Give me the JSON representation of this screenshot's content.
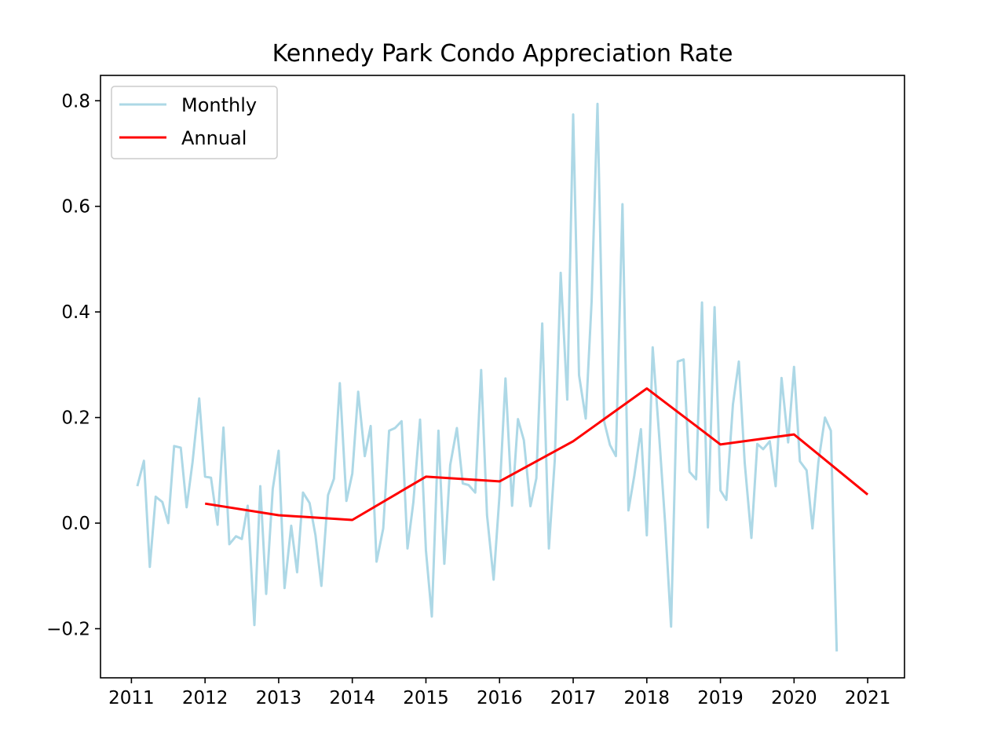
{
  "chart_data": {
    "type": "line",
    "title": "Kennedy Park Condo Appreciation Rate",
    "xlabel": "",
    "ylabel": "",
    "xlim": [
      2010.58,
      2021.5
    ],
    "ylim": [
      -0.293,
      0.848
    ],
    "x_ticks": [
      2011,
      2012,
      2013,
      2014,
      2015,
      2016,
      2017,
      2018,
      2019,
      2020,
      2021
    ],
    "x_tick_labels": [
      "2011",
      "2012",
      "2013",
      "2014",
      "2015",
      "2016",
      "2017",
      "2018",
      "2019",
      "2020",
      "2021"
    ],
    "y_ticks": [
      -0.2,
      0.0,
      0.2,
      0.4,
      0.6,
      0.8
    ],
    "y_tick_labels": [
      "−0.2",
      "0.0",
      "0.2",
      "0.4",
      "0.6",
      "0.8"
    ],
    "legend": {
      "placement": "top-left"
    },
    "grid": false,
    "series": [
      {
        "name": "Monthly",
        "color": "#add8e6",
        "x": [
          2011.08,
          2011.17,
          2011.25,
          2011.33,
          2011.42,
          2011.5,
          2011.58,
          2011.67,
          2011.75,
          2011.83,
          2011.92,
          2012.0,
          2012.08,
          2012.17,
          2012.25,
          2012.33,
          2012.42,
          2012.5,
          2012.58,
          2012.67,
          2012.75,
          2012.83,
          2012.92,
          2013.0,
          2013.08,
          2013.17,
          2013.25,
          2013.33,
          2013.42,
          2013.5,
          2013.58,
          2013.67,
          2013.75,
          2013.83,
          2013.92,
          2014.0,
          2014.08,
          2014.17,
          2014.25,
          2014.33,
          2014.42,
          2014.5,
          2014.58,
          2014.67,
          2014.75,
          2014.83,
          2014.92,
          2015.0,
          2015.08,
          2015.17,
          2015.25,
          2015.33,
          2015.42,
          2015.5,
          2015.58,
          2015.67,
          2015.75,
          2015.83,
          2015.92,
          2016.0,
          2016.08,
          2016.17,
          2016.25,
          2016.33,
          2016.42,
          2016.5,
          2016.58,
          2016.67,
          2016.75,
          2016.83,
          2016.92,
          2017.0,
          2017.08,
          2017.17,
          2017.25,
          2017.33,
          2017.42,
          2017.5,
          2017.58,
          2017.67,
          2017.75,
          2017.83,
          2017.92,
          2018.0,
          2018.08,
          2018.17,
          2018.25,
          2018.33,
          2018.42,
          2018.5,
          2018.58,
          2018.67,
          2018.75,
          2018.83,
          2018.92,
          2019.0,
          2019.08,
          2019.17,
          2019.25,
          2019.33,
          2019.42,
          2019.5,
          2019.58,
          2019.67,
          2019.75,
          2019.83,
          2019.92,
          2020.0,
          2020.08,
          2020.17,
          2020.25,
          2020.33,
          2020.42,
          2020.5,
          2020.58
        ],
        "y": [
          0.07,
          0.118,
          -0.083,
          0.05,
          0.04,
          0.0,
          0.146,
          0.143,
          0.03,
          0.115,
          0.236,
          0.088,
          0.086,
          -0.003,
          0.181,
          -0.04,
          -0.025,
          -0.03,
          0.033,
          -0.193,
          0.07,
          -0.134,
          0.065,
          0.137,
          -0.123,
          -0.005,
          -0.093,
          0.058,
          0.038,
          -0.023,
          -0.119,
          0.053,
          0.084,
          0.265,
          0.042,
          0.094,
          0.249,
          0.127,
          0.184,
          -0.073,
          -0.01,
          0.175,
          0.18,
          0.193,
          -0.048,
          0.04,
          0.196,
          -0.052,
          -0.177,
          0.175,
          -0.077,
          0.11,
          0.18,
          0.075,
          0.072,
          0.058,
          0.29,
          0.015,
          -0.107,
          0.053,
          0.274,
          0.033,
          0.197,
          0.157,
          0.032,
          0.085,
          0.378,
          -0.048,
          0.12,
          0.474,
          0.234,
          0.774,
          0.28,
          0.198,
          0.42,
          0.794,
          0.193,
          0.148,
          0.127,
          0.604,
          0.024,
          0.09,
          0.178,
          -0.023,
          0.333,
          0.162,
          -0.002,
          -0.196,
          0.306,
          0.31,
          0.097,
          0.083,
          0.418,
          -0.008,
          0.409,
          0.062,
          0.044,
          0.225,
          0.306,
          0.114,
          -0.028,
          0.15,
          0.14,
          0.155,
          0.07,
          0.275,
          0.153,
          0.296,
          0.117,
          0.1,
          -0.01,
          0.115,
          0.2,
          0.175,
          -0.243
        ]
      },
      {
        "name": "Annual",
        "color": "#ff0000",
        "x": [
          2012,
          2013,
          2014,
          2015,
          2016,
          2017,
          2018,
          2019,
          2020,
          2021
        ],
        "y": [
          0.037,
          0.015,
          0.006,
          0.088,
          0.079,
          0.155,
          0.255,
          0.149,
          0.168,
          0.054
        ]
      }
    ]
  }
}
